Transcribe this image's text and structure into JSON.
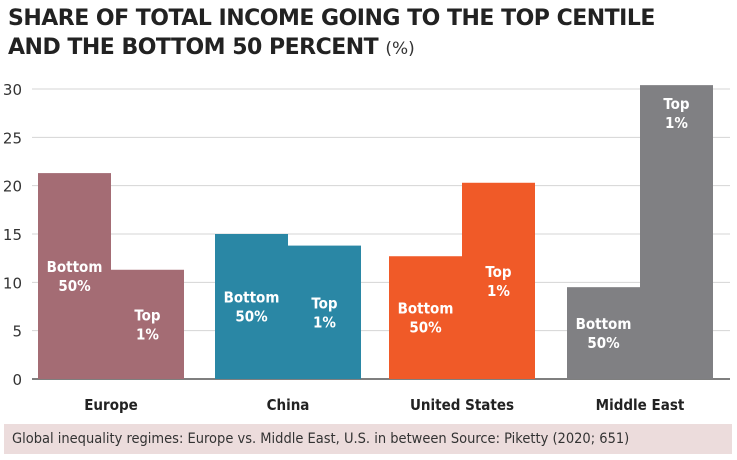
{
  "title_line1": "SHARE OF TOTAL INCOME GOING TO THE TOP CENTILE",
  "title_line2": "AND THE BOTTOM 50 PERCENT",
  "title_unit": "(%)",
  "caption": "Global inequality regimes: Europe vs. Middle East, U.S. in between Source: Piketty (2020; 651)",
  "colors": {
    "europe": "#a46c74",
    "china": "#2a87a5",
    "united_states": "#f05a28",
    "middle_east": "#808083",
    "grid": "#d4d4d4",
    "caption_bg": "#ecdcdc"
  },
  "chart_data": {
    "type": "bar",
    "categories": [
      "Europe",
      "China",
      "United States",
      "Middle East"
    ],
    "series": [
      {
        "label_line1": "Bottom",
        "label_line2": "50%",
        "values": [
          21.3,
          15.0,
          12.7,
          9.5
        ]
      },
      {
        "label_line1": "Top",
        "label_line2": "1%",
        "values": [
          11.3,
          13.8,
          20.3,
          30.4
        ]
      }
    ],
    "yticks": [
      0,
      5,
      10,
      15,
      20,
      25,
      30
    ],
    "ylim": [
      0,
      31
    ],
    "grid": true
  }
}
